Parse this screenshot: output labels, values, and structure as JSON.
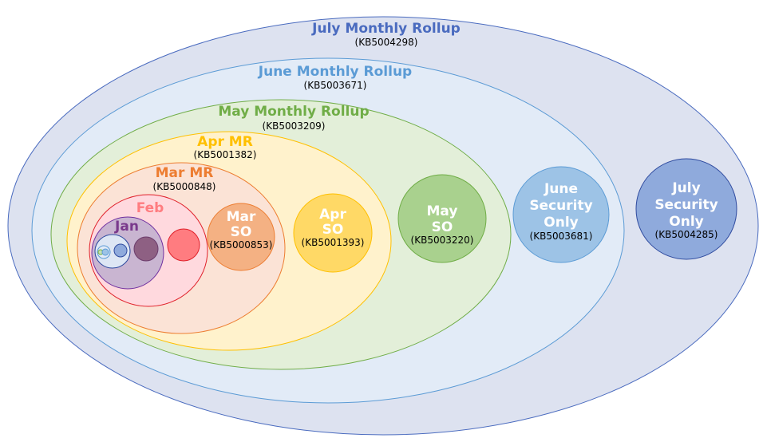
{
  "nodes": {
    "july_mr": {
      "title": "July Monthly Rollup",
      "kb": "(KB5004298)",
      "fill": "#dde2f0",
      "stroke": "#4a6bbf",
      "text_color": "#4a6bbf"
    },
    "june_mr": {
      "title": "June Monthly Rollup",
      "kb": "(KB5003671)",
      "fill": "#e2ebf7",
      "stroke": "#5b9bd5",
      "text_color": "#5b9bd5"
    },
    "may_mr": {
      "title": "May Monthly Rollup",
      "kb": "(KB5003209)",
      "fill": "#e3efd9",
      "stroke": "#70ad47",
      "text_color": "#70ad47"
    },
    "apr_mr": {
      "title": "Apr MR",
      "kb": "(KB5001382)",
      "fill": "#fff2cc",
      "stroke": "#ffc000",
      "text_color": "#ffc000"
    },
    "mar_mr": {
      "title": "Mar MR",
      "kb": "(KB5000848)",
      "fill": "#fbe3d6",
      "stroke": "#ed7d31",
      "text_color": "#ed7d31"
    },
    "feb": {
      "title": "Feb",
      "fill": "#ffd9de",
      "stroke": "#e0202a",
      "text_color": "#ff7c80"
    },
    "jan": {
      "title": "Jan",
      "fill": "#c9b5d1",
      "stroke": "#7030a0",
      "text_color": "#7a3a8c"
    },
    "mar_so": {
      "line1": "Mar",
      "line2": "SO",
      "kb": "(KB5000853)",
      "fill": "#f4b183",
      "stroke": "#ed7d31"
    },
    "apr_so": {
      "line1": "Apr",
      "line2": "SO",
      "kb": "(KB5001393)",
      "fill": "#ffd966",
      "stroke": "#ffc000"
    },
    "may_so": {
      "line1": "May",
      "line2": "SO",
      "kb": "(KB5003220)",
      "fill": "#a9d18e",
      "stroke": "#70ad47"
    },
    "june_so": {
      "line1": "June",
      "line2": "Security",
      "line3": "Only",
      "kb": "(KB5003681)",
      "fill": "#9dc3e6",
      "stroke": "#5b9bd5"
    },
    "july_so": {
      "line1": "July",
      "line2": "Security",
      "line3": "Only",
      "kb": "(KB5004285)",
      "fill": "#8faadc",
      "stroke": "#2f4b9f"
    }
  }
}
